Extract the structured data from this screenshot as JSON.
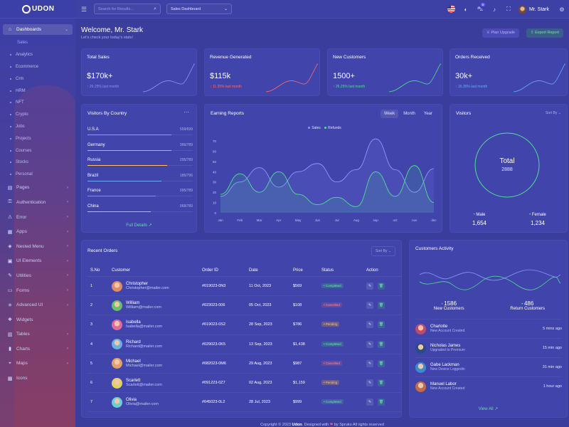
{
  "app": {
    "logo": "UDON"
  },
  "sidebar": {
    "main_item": "Dashboards",
    "sub_items": [
      "Sales",
      "Analytics",
      "Ecommerce",
      "Crm",
      "HRM",
      "NFT",
      "Crypto",
      "Jobs",
      "Projects",
      "Courses",
      "Stocks",
      "Personal"
    ],
    "items": [
      {
        "label": "Pages",
        "icon": "page-icon"
      },
      {
        "label": "Authentication",
        "icon": "key-icon"
      },
      {
        "label": "Error",
        "icon": "warning-icon"
      },
      {
        "label": "Apps",
        "icon": "grid-icon"
      },
      {
        "label": "Nested Menu",
        "icon": "layers-icon"
      },
      {
        "label": "UI Elements",
        "icon": "box-icon"
      },
      {
        "label": "Utilities",
        "icon": "tool-icon"
      },
      {
        "label": "Forms",
        "icon": "form-icon"
      },
      {
        "label": "Advanced UI",
        "icon": "sparkle-icon"
      },
      {
        "label": "Widgets",
        "icon": "gift-icon"
      },
      {
        "label": "Tables",
        "icon": "table-icon"
      },
      {
        "label": "Charts",
        "icon": "chart-icon"
      },
      {
        "label": "Maps",
        "icon": "map-pin-icon"
      },
      {
        "label": "Icons",
        "icon": "archive-icon"
      }
    ]
  },
  "topbar": {
    "search_placeholder": "Search for Results...",
    "dashboard_select": "Sales Dashboard",
    "cart_badge": "5",
    "user_name": "Mr. Stark"
  },
  "header": {
    "title": "Welcome, Mr. Stark",
    "subtitle": "Let's check your today's stats!",
    "plan_button": "Plan Upgrade",
    "export_button": "Export Report"
  },
  "stats": [
    {
      "title": "Total Sales",
      "value": "$170k+",
      "change": "26.25% last month",
      "trend": "up",
      "color": "#8e96ff"
    },
    {
      "title": "Revenue Generated",
      "value": "$115k",
      "change": "11.35% last month",
      "trend": "down",
      "color": "#ff6b6b"
    },
    {
      "title": "New Customers",
      "value": "1500+",
      "change": "26.25% last month",
      "trend": "up",
      "color": "#4ce38c"
    },
    {
      "title": "Orders Received",
      "value": "30k+",
      "change": "16.35% last month",
      "trend": "up",
      "color": "#64b0ff"
    }
  ],
  "visitors_by_country": {
    "title": "Visitors By Country",
    "rows": [
      {
        "name": "U.S.A",
        "value": "559/699",
        "fill": 0.8,
        "color": "#8e96ff"
      },
      {
        "name": "Germany",
        "value": "366/789",
        "fill": 0.8,
        "color": "#5fe39a"
      },
      {
        "name": "Russia",
        "value": "295/789",
        "fill": 0.76,
        "color": "#ffc266"
      },
      {
        "name": "Brazil",
        "value": "185/796",
        "fill": 0.7,
        "color": "#64b0ff"
      },
      {
        "name": "France",
        "value": "095/789",
        "fill": 0.65,
        "color": "#ff6b6b"
      },
      {
        "name": "China",
        "value": "068/789",
        "fill": 0.6,
        "color": "#6ff0a3"
      }
    ],
    "link": "Full Details"
  },
  "earning_reports": {
    "title": "Earning Reports",
    "tabs": [
      "Week",
      "Month",
      "Year"
    ],
    "active_tab": "Week"
  },
  "chart_data": {
    "type": "area",
    "x": [
      "Jan",
      "Feb",
      "Mar",
      "Apr",
      "May",
      "Jun",
      "Jul",
      "Aug",
      "sep",
      "oct",
      "nov",
      "dec"
    ],
    "series": [
      {
        "name": "Sales",
        "color": "#8e96ff",
        "values": [
          16,
          30,
          44,
          25,
          40,
          48,
          30,
          42,
          72,
          42,
          20,
          43
        ]
      },
      {
        "name": "Refunds",
        "color": "#4ce38c",
        "values": [
          18,
          38,
          20,
          40,
          18,
          8,
          15,
          6,
          40,
          16,
          46,
          10
        ]
      }
    ],
    "ylim": [
      0,
      70
    ],
    "yticks": [
      "70",
      "60",
      "50",
      "40",
      "30",
      "20",
      "10",
      "0"
    ]
  },
  "visitors": {
    "title": "Visitors",
    "sort": "Sort By",
    "total_label": "Total",
    "total_value": "2888",
    "male_label": "Male",
    "male_value": "1,654",
    "female_label": "Female",
    "female_value": "1,234"
  },
  "recent_orders": {
    "title": "Recent Orders",
    "sort": "Sort By",
    "headers": [
      "S.No",
      "Customer",
      "Order ID",
      "Date",
      "Price",
      "Status",
      "Action"
    ],
    "rows": [
      {
        "no": "1",
        "name": "Christopher",
        "email": "Christopher@mailer.com",
        "id": "#019023-0N3",
        "date": "11 Oct, 2023",
        "price": "$569",
        "status": "Completed",
        "avatar": "#e08a6a"
      },
      {
        "no": "2",
        "name": "William",
        "email": "William@mailer.com",
        "id": "#023023-006",
        "date": "05 Oct, 2023",
        "price": "$108",
        "status": "Cancelled",
        "avatar": "#6abf6a"
      },
      {
        "no": "3",
        "name": "Isabella",
        "email": "Isabella@mailer.com",
        "id": "#019023-0S2",
        "date": "28 Sep, 2023",
        "price": "$786",
        "status": "Pending",
        "avatar": "#e06a9a"
      },
      {
        "no": "4",
        "name": "Richard",
        "email": "Richard@mailer.com",
        "id": "#029023-0K5",
        "date": "13 Sep, 2023",
        "price": "$1,438",
        "status": "Completed",
        "avatar": "#6ab0e0"
      },
      {
        "no": "5",
        "name": "Michael",
        "email": "Michael@mailer.com",
        "id": "#082023-0M6",
        "date": "29 Aug, 2023",
        "price": "$987",
        "status": "Cancelled",
        "avatar": "#e0a06a"
      },
      {
        "no": "6",
        "name": "Scarlett",
        "email": "Scarlett@mailer.com",
        "id": "#091223-0Z7",
        "date": "02 Aug, 2023",
        "price": "$1,159",
        "status": "Pending",
        "avatar": "#e0d06a"
      },
      {
        "no": "7",
        "name": "Olivia",
        "email": "Olivia@mailer.com",
        "id": "#045023-0L2",
        "date": "28 Jul, 2023",
        "price": "$999",
        "status": "Completed",
        "avatar": "#6ad0d0"
      }
    ]
  },
  "customers_activity": {
    "title": "Customers Activity",
    "new_value": "1586",
    "new_label": "New Customers",
    "return_value": "486",
    "return_label": "Return Customers",
    "items": [
      {
        "name": "Charlotte",
        "desc": "New Account Created",
        "time": "5 mins ago",
        "avatar": "#c04a6a"
      },
      {
        "name": "Nicholas James",
        "desc": "Upgraded to Premium",
        "time": "15 min ago",
        "avatar": "#2a4a8a"
      },
      {
        "name": "Gabe Lackman",
        "desc": "New Device Loggedin",
        "time": "31 min ago",
        "avatar": "#3a8ad0"
      },
      {
        "name": "Manuel Labor",
        "desc": "New Account Created",
        "time": "1 hour ago",
        "avatar": "#c06a4a"
      }
    ],
    "link": "View All"
  },
  "footer": {
    "prefix": "Copyright © 2023",
    "brand": "Udon",
    "middle": ". Designed with",
    "suffix": "by Spruko All rights reserved"
  }
}
